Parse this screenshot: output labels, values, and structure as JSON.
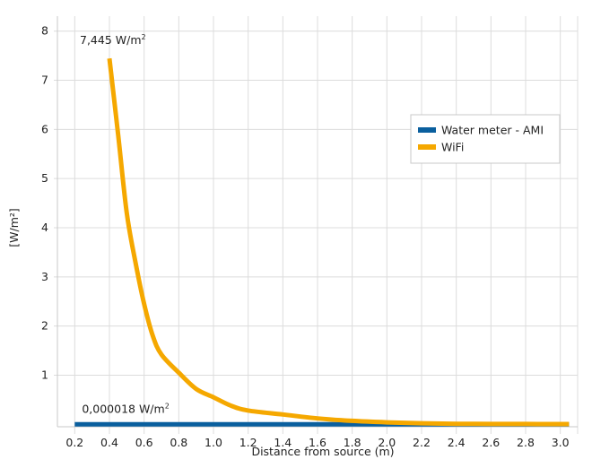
{
  "chart_data": {
    "type": "line",
    "title": "",
    "xlabel": "Distance from source (m)",
    "ylabel": "[W/m²]",
    "xlim": [
      0.1,
      3.1
    ],
    "ylim": [
      -0.05,
      8.05
    ],
    "x_ticks": [
      0.2,
      0.4,
      0.6,
      0.8,
      1.0,
      1.2,
      1.4,
      1.6,
      1.8,
      2.0,
      2.2,
      2.4,
      2.6,
      2.8,
      3.0
    ],
    "x_tick_labels": [
      "0.2",
      "0.4",
      "0.6",
      "0.8",
      "1.0",
      "1.2",
      "1.4",
      "1.6",
      "1.8",
      "2.0",
      "2.2",
      "2.4",
      "2.6",
      "2.8",
      "3.0"
    ],
    "y_ticks": [
      1,
      2,
      3,
      4,
      5,
      6,
      7,
      8
    ],
    "y_tick_labels": [
      "1",
      "2",
      "3",
      "4",
      "5",
      "6",
      "7",
      "8"
    ],
    "grid": true,
    "legend_position": "upper-right",
    "series": [
      {
        "name": "Water meter - AMI",
        "color": "#0a5f9e",
        "x": [
          0.2,
          3.05
        ],
        "y": [
          1.8e-05,
          1.8e-05
        ]
      },
      {
        "name": "WiFi",
        "color": "#f5a800",
        "x": [
          0.4,
          0.45,
          0.5,
          0.55,
          0.6,
          0.65,
          0.7,
          0.8,
          0.9,
          1.0,
          1.1,
          1.2,
          1.4,
          1.6,
          1.8,
          2.0,
          2.2,
          2.4,
          2.6,
          2.8,
          3.0,
          3.05
        ],
        "y": [
          7.445,
          5.9,
          4.3,
          3.3,
          2.45,
          1.8,
          1.42,
          1.05,
          0.72,
          0.55,
          0.38,
          0.28,
          0.2,
          0.12,
          0.07,
          0.04,
          0.02,
          0.01,
          0.008,
          0.006,
          0.005,
          0.005
        ]
      }
    ],
    "annotations": [
      {
        "series": "WiFi",
        "text": "7,445 W/m",
        "superscript": "2",
        "x": 0.4,
        "y": 7.445
      },
      {
        "series": "Water meter - AMI",
        "text": "0,000018  W/m",
        "superscript": "2",
        "x": 0.2,
        "y": 1.8e-05
      }
    ]
  }
}
